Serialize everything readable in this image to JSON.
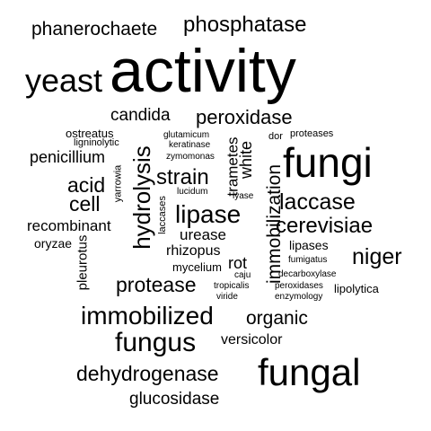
{
  "words": [
    "activity",
    "fungi",
    "fungal",
    "yeast",
    "immobilized",
    "fungus",
    "hydrolysis",
    "lipase",
    "phosphatase",
    "phanerochaete",
    "peroxidase",
    "laccase",
    "cerevisiae",
    "dehydrogenase",
    "niger",
    "protease",
    "acid",
    "cell",
    "strain",
    "immobilization",
    "glucosidase",
    "organic",
    "candida",
    "penicillium",
    "recombinant",
    "urease",
    "white",
    "trametes",
    "pleurotus",
    "rhizopus",
    "rot",
    "versicolor",
    "lipases",
    "oryzae",
    "mycelium",
    "lipolytica",
    "ostreatus",
    "ligninolytic",
    "glutamicum",
    "keratinase",
    "zymomonas",
    "dor",
    "proteases",
    "yarrowia",
    "lucidum",
    "lyase",
    "laccases",
    "fumigatus",
    "decarboxylase",
    "caju",
    "tropicalis",
    "peroxidases",
    "viride",
    "enzymology"
  ]
}
